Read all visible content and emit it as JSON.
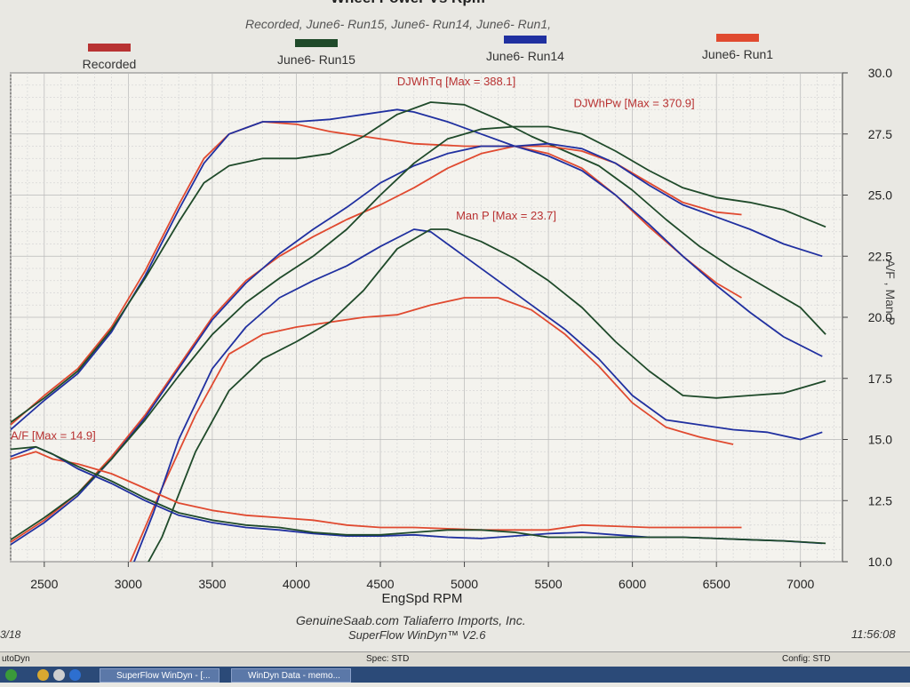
{
  "chart_data": {
    "type": "line",
    "title": "Wheel Power  Vs Rpm",
    "subtitle": "Recorded, June6- Run15, June6- Run14, June6- Run1,",
    "xlabel": "EngSpd  RPM",
    "ylabel_right": "A/F , Man P",
    "xlim": [
      2300,
      7250
    ],
    "ylim_right": [
      10.0,
      30.0
    ],
    "x_ticks": [
      "2500",
      "3000",
      "3500",
      "4000",
      "4500",
      "5000",
      "5500",
      "6000",
      "6500",
      "7000"
    ],
    "y_ticks_right": [
      "10.0",
      "12.5",
      "15.0",
      "17.5",
      "20.0",
      "22.5",
      "25.0",
      "27.5",
      "30.0"
    ],
    "legend": [
      {
        "name": "Recorded",
        "color": "#b83232"
      },
      {
        "name": "June6- Run15",
        "color": "#1f4a2a"
      },
      {
        "name": "June6- Run14",
        "color": "#2030a0"
      },
      {
        "name": "June6- Run1",
        "color": "#e04a30"
      }
    ],
    "annotations": [
      {
        "text": "DJWhTq [Max = 388.1]",
        "x": 4600,
        "y": 29.5
      },
      {
        "text": "DJWhPw [Max = 370.9]",
        "x": 5650,
        "y": 28.6
      },
      {
        "text": "Man P  [Max = 23.7]",
        "x": 4950,
        "y": 24.0
      },
      {
        "text": "A/F   [Max = 14.9]",
        "x": 2300,
        "y": 15.0
      }
    ],
    "series": [
      {
        "name": "June6- Run1",
        "metric": "DJWhTq",
        "color": "#e04a30",
        "x": [
          2300,
          2500,
          2700,
          2900,
          3100,
          3300,
          3450,
          3600,
          3800,
          4000,
          4200,
          4400,
          4700,
          5000,
          5300,
          5500,
          5700,
          5900,
          6100,
          6300,
          6500,
          6650
        ],
        "y": [
          15.6,
          16.8,
          17.9,
          19.6,
          21.9,
          24.6,
          26.5,
          27.5,
          28.0,
          27.9,
          27.6,
          27.4,
          27.1,
          27.0,
          27.0,
          26.7,
          26.1,
          25.0,
          23.7,
          22.5,
          21.4,
          20.8
        ]
      },
      {
        "name": "June6- Run14",
        "metric": "DJWhTq",
        "color": "#2030a0",
        "x": [
          2300,
          2500,
          2700,
          2900,
          3100,
          3300,
          3450,
          3600,
          3800,
          4000,
          4200,
          4400,
          4600,
          4700,
          4900,
          5100,
          5300,
          5500,
          5700,
          5900,
          6100,
          6300,
          6500,
          6700,
          6900,
          7130
        ],
        "y": [
          15.4,
          16.6,
          17.7,
          19.4,
          21.7,
          24.4,
          26.3,
          27.5,
          28.0,
          28.0,
          28.1,
          28.3,
          28.5,
          28.4,
          28.0,
          27.5,
          27.0,
          26.6,
          26.0,
          25.0,
          23.8,
          22.5,
          21.3,
          20.2,
          19.2,
          18.4
        ]
      },
      {
        "name": "June6- Run15",
        "metric": "DJWhTq",
        "color": "#1f4a2a",
        "x": [
          2300,
          2500,
          2700,
          2900,
          3100,
          3300,
          3450,
          3600,
          3800,
          4000,
          4200,
          4400,
          4600,
          4800,
          5000,
          5200,
          5400,
          5600,
          5800,
          6000,
          6200,
          6400,
          6600,
          6800,
          7000,
          7150
        ],
        "y": [
          15.7,
          16.7,
          17.8,
          19.5,
          21.6,
          23.9,
          25.5,
          26.2,
          26.5,
          26.5,
          26.7,
          27.4,
          28.3,
          28.8,
          28.7,
          28.1,
          27.4,
          26.8,
          26.2,
          25.2,
          24.0,
          22.9,
          22.0,
          21.2,
          20.4,
          19.3
        ]
      },
      {
        "name": "June6- Run1",
        "metric": "DJWhPw",
        "color": "#e04a30",
        "x": [
          2300,
          2500,
          2700,
          2900,
          3100,
          3300,
          3500,
          3700,
          3900,
          4100,
          4300,
          4500,
          4700,
          4900,
          5100,
          5300,
          5500,
          5700,
          5900,
          6100,
          6300,
          6500,
          6650
        ],
        "y": [
          10.8,
          11.7,
          12.8,
          14.3,
          16.0,
          18.0,
          20.0,
          21.5,
          22.5,
          23.3,
          24.0,
          24.6,
          25.3,
          26.1,
          26.7,
          27.0,
          27.0,
          26.8,
          26.3,
          25.5,
          24.7,
          24.3,
          24.2
        ]
      },
      {
        "name": "June6- Run14",
        "metric": "DJWhPw",
        "color": "#2030a0",
        "x": [
          2300,
          2500,
          2700,
          2900,
          3100,
          3300,
          3500,
          3700,
          3900,
          4100,
          4300,
          4500,
          4700,
          4900,
          5100,
          5300,
          5500,
          5700,
          5900,
          6100,
          6300,
          6500,
          6700,
          6900,
          7130
        ],
        "y": [
          10.7,
          11.6,
          12.7,
          14.2,
          15.9,
          17.9,
          19.9,
          21.4,
          22.6,
          23.6,
          24.5,
          25.5,
          26.2,
          26.7,
          27.0,
          27.0,
          27.1,
          26.9,
          26.3,
          25.4,
          24.6,
          24.1,
          23.6,
          23.0,
          22.5
        ]
      },
      {
        "name": "June6- Run15",
        "metric": "DJWhPw",
        "color": "#1f4a2a",
        "x": [
          2300,
          2500,
          2700,
          2900,
          3100,
          3300,
          3500,
          3700,
          3900,
          4100,
          4300,
          4500,
          4700,
          4900,
          5100,
          5300,
          5500,
          5700,
          5900,
          6100,
          6300,
          6500,
          6700,
          6900,
          7150
        ],
        "y": [
          10.9,
          11.8,
          12.8,
          14.2,
          15.8,
          17.6,
          19.3,
          20.6,
          21.6,
          22.5,
          23.6,
          25.0,
          26.3,
          27.3,
          27.7,
          27.8,
          27.8,
          27.5,
          26.8,
          26.0,
          25.3,
          24.9,
          24.7,
          24.4,
          23.7
        ]
      },
      {
        "name": "June6- Run1",
        "metric": "ManP",
        "color": "#e04a30",
        "x": [
          2550,
          3000,
          3200,
          3400,
          3600,
          3800,
          4000,
          4200,
          4400,
          4600,
          4800,
          5000,
          5200,
          5400,
          5600,
          5800,
          6000,
          6200,
          6400,
          6600
        ],
        "y": [
          8.5,
          9.8,
          13.0,
          16.0,
          18.5,
          19.3,
          19.6,
          19.8,
          20.0,
          20.1,
          20.5,
          20.8,
          20.8,
          20.3,
          19.3,
          18.0,
          16.5,
          15.5,
          15.1,
          14.8
        ]
      },
      {
        "name": "June6- Run14",
        "metric": "ManP",
        "color": "#2030a0",
        "x": [
          2550,
          3000,
          3150,
          3300,
          3500,
          3700,
          3900,
          4100,
          4300,
          4500,
          4700,
          4800,
          5000,
          5200,
          5400,
          5600,
          5800,
          6000,
          6200,
          6400,
          6600,
          6800,
          7000,
          7130
        ],
        "y": [
          8.5,
          9.4,
          12.0,
          15.0,
          17.9,
          19.6,
          20.8,
          21.5,
          22.1,
          22.9,
          23.6,
          23.5,
          22.5,
          21.5,
          20.5,
          19.5,
          18.3,
          16.8,
          15.8,
          15.6,
          15.4,
          15.3,
          15.0,
          15.3
        ]
      },
      {
        "name": "June6- Run15",
        "metric": "ManP",
        "color": "#1f4a2a",
        "x": [
          3000,
          3200,
          3400,
          3600,
          3800,
          4000,
          4200,
          4400,
          4600,
          4800,
          4900,
          5100,
          5300,
          5500,
          5700,
          5900,
          6100,
          6300,
          6500,
          6700,
          6900,
          7150
        ],
        "y": [
          8.5,
          11.0,
          14.5,
          17.0,
          18.3,
          19.0,
          19.8,
          21.1,
          22.8,
          23.6,
          23.6,
          23.1,
          22.4,
          21.5,
          20.4,
          19.0,
          17.8,
          16.8,
          16.7,
          16.8,
          16.9,
          17.4
        ]
      },
      {
        "name": "June6- Run1",
        "metric": "A/F",
        "color": "#e04a30",
        "x": [
          2300,
          2450,
          2550,
          2700,
          2900,
          3100,
          3300,
          3500,
          3700,
          3900,
          4100,
          4300,
          4500,
          4700,
          4900,
          5100,
          5300,
          5500,
          5700,
          5900,
          6100,
          6300,
          6500,
          6650
        ],
        "y": [
          14.2,
          14.5,
          14.2,
          14.0,
          13.6,
          13.0,
          12.4,
          12.1,
          11.9,
          11.8,
          11.7,
          11.5,
          11.4,
          11.4,
          11.35,
          11.3,
          11.3,
          11.3,
          11.5,
          11.45,
          11.4,
          11.4,
          11.4,
          11.4
        ]
      },
      {
        "name": "June6- Run14",
        "metric": "A/F",
        "color": "#2030a0",
        "x": [
          2300,
          2450,
          2550,
          2700,
          2900,
          3100,
          3300,
          3500,
          3700,
          3900,
          4100,
          4300,
          4500,
          4700,
          4900,
          5100,
          5300,
          5500,
          5700,
          5900,
          6100,
          6300,
          6500,
          6700,
          6900,
          7130
        ],
        "y": [
          14.3,
          14.7,
          14.4,
          13.8,
          13.2,
          12.5,
          11.9,
          11.6,
          11.4,
          11.3,
          11.15,
          11.05,
          11.05,
          11.1,
          11.0,
          10.95,
          11.05,
          11.15,
          11.2,
          11.1,
          11.0,
          11.0,
          10.95,
          10.9,
          10.85,
          10.75
        ]
      },
      {
        "name": "June6- Run15",
        "metric": "A/F",
        "color": "#1f4a2a",
        "x": [
          2300,
          2450,
          2550,
          2700,
          2900,
          3100,
          3300,
          3500,
          3700,
          3900,
          4100,
          4300,
          4500,
          4700,
          4900,
          5100,
          5300,
          5500,
          5700,
          5900,
          6100,
          6300,
          6500,
          6700,
          6900,
          7150
        ],
        "y": [
          14.6,
          14.7,
          14.4,
          13.9,
          13.3,
          12.6,
          12.0,
          11.7,
          11.5,
          11.4,
          11.2,
          11.1,
          11.1,
          11.2,
          11.3,
          11.3,
          11.2,
          11.0,
          11.0,
          11.0,
          11.0,
          11.0,
          10.95,
          10.9,
          10.85,
          10.75
        ]
      }
    ]
  },
  "footer": {
    "line1": "GenuineSaab.com  Taliaferro Imports, Inc.",
    "line2": "SuperFlow WinDyn™  V2.6",
    "date": "3/18",
    "time": "11:56:08"
  },
  "statusbar": {
    "left": "utoDyn",
    "spec": "Spec: STD",
    "config": "Config: STD"
  },
  "taskbar": {
    "btn1": "SuperFlow WinDyn - [...",
    "btn2": "WinDyn Data - memo..."
  }
}
